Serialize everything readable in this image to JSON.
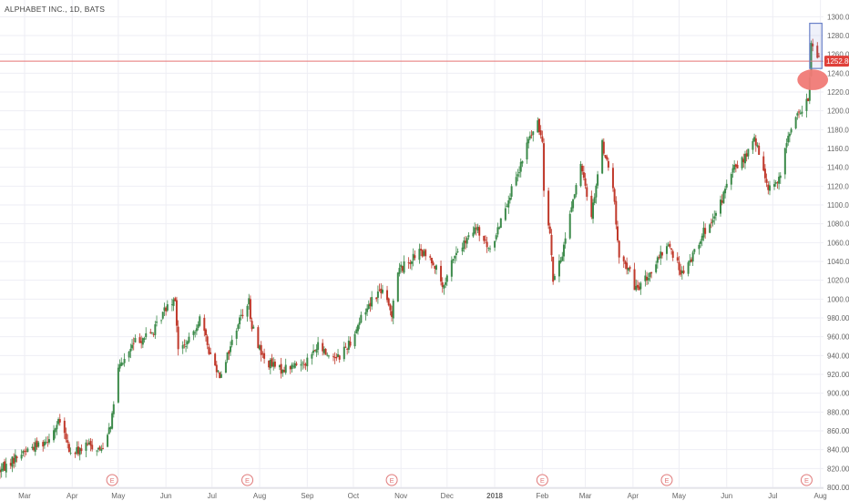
{
  "header": {
    "symbol_label": "ALPHABET INC., 1D, BATS"
  },
  "colors": {
    "up": "#3c8a4a",
    "down": "#c0392b",
    "grid": "#eeeef4",
    "price_line": "#e57373",
    "price_tag_bg": "#e0403a",
    "highlight_box": "#6a80c8",
    "highlight_ellipse": "#f07a76",
    "earnings": "#e07a7a",
    "axis_text": "#666666"
  },
  "chart_data": {
    "type": "candlestick",
    "title": "ALPHABET INC., 1D, BATS",
    "ylim": [
      800,
      1310
    ],
    "y_ticks": [
      800,
      820,
      840,
      860,
      880,
      900,
      920,
      940,
      960,
      980,
      1000,
      1020,
      1040,
      1060,
      1080,
      1100,
      1120,
      1140,
      1160,
      1180,
      1200,
      1220,
      1240,
      1260,
      1280,
      1300
    ],
    "y_tick_labels": [
      "800.00",
      "820.00",
      "840.00",
      "860.00",
      "880.00",
      "900.00",
      "920.00",
      "940.00",
      "960.00",
      "980.00",
      "1000.00",
      "1020.00",
      "1040.00",
      "1060.00",
      "1080.00",
      "1100.00",
      "1120.00",
      "1140.00",
      "1160.00",
      "1180.00",
      "1200.00",
      "1220.00",
      "1240.00",
      "1260.00",
      "1280.00",
      "1300.00"
    ],
    "x_range": [
      "2017-02-13",
      "2018-08-03"
    ],
    "x_ticks": [
      {
        "date": "2017-03-01",
        "label": "Mar"
      },
      {
        "date": "2017-04-01",
        "label": "Apr"
      },
      {
        "date": "2017-05-01",
        "label": "May"
      },
      {
        "date": "2017-06-01",
        "label": "Jun"
      },
      {
        "date": "2017-07-01",
        "label": "Jul"
      },
      {
        "date": "2017-08-01",
        "label": "Aug"
      },
      {
        "date": "2017-09-01",
        "label": "Sep"
      },
      {
        "date": "2017-10-01",
        "label": "Oct"
      },
      {
        "date": "2017-11-01",
        "label": "Nov"
      },
      {
        "date": "2017-12-01",
        "label": "Dec"
      },
      {
        "date": "2018-01-01",
        "label": "2018"
      },
      {
        "date": "2018-02-01",
        "label": "Feb"
      },
      {
        "date": "2018-03-01",
        "label": "Mar"
      },
      {
        "date": "2018-04-01",
        "label": "Apr"
      },
      {
        "date": "2018-05-01",
        "label": "May"
      },
      {
        "date": "2018-06-01",
        "label": "Jun"
      },
      {
        "date": "2018-07-01",
        "label": "Jul"
      },
      {
        "date": "2018-08-01",
        "label": "Aug"
      }
    ],
    "anchors": [
      [
        "2017-02-13",
        818
      ],
      [
        "2017-02-28",
        838
      ],
      [
        "2017-03-15",
        850
      ],
      [
        "2017-03-24",
        870
      ],
      [
        "2017-03-31",
        835
      ],
      [
        "2017-04-12",
        845
      ],
      [
        "2017-04-20",
        840
      ],
      [
        "2017-04-27",
        874
      ],
      [
        "2017-04-28",
        890
      ],
      [
        "2017-05-01",
        925
      ],
      [
        "2017-05-12",
        955
      ],
      [
        "2017-05-24",
        965
      ],
      [
        "2017-06-02",
        995
      ],
      [
        "2017-06-07",
        1002
      ],
      [
        "2017-06-09",
        945
      ],
      [
        "2017-06-16",
        955
      ],
      [
        "2017-06-23",
        980
      ],
      [
        "2017-06-30",
        940
      ],
      [
        "2017-07-06",
        920
      ],
      [
        "2017-07-12",
        945
      ],
      [
        "2017-07-18",
        975
      ],
      [
        "2017-07-25",
        1000
      ],
      [
        "2017-07-26",
        975
      ],
      [
        "2017-08-04",
        935
      ],
      [
        "2017-08-14",
        925
      ],
      [
        "2017-08-25",
        930
      ],
      [
        "2017-09-01",
        935
      ],
      [
        "2017-09-08",
        950
      ],
      [
        "2017-09-15",
        940
      ],
      [
        "2017-09-22",
        940
      ],
      [
        "2017-09-29",
        955
      ],
      [
        "2017-10-06",
        980
      ],
      [
        "2017-10-13",
        1000
      ],
      [
        "2017-10-19",
        1010
      ],
      [
        "2017-10-26",
        985
      ],
      [
        "2017-10-27",
        1000
      ],
      [
        "2017-10-30",
        1030
      ],
      [
        "2017-11-06",
        1040
      ],
      [
        "2017-11-13",
        1050
      ],
      [
        "2017-11-22",
        1040
      ],
      [
        "2017-11-29",
        1010
      ],
      [
        "2017-12-05",
        1045
      ],
      [
        "2017-12-13",
        1060
      ],
      [
        "2017-12-20",
        1075
      ],
      [
        "2017-12-29",
        1050
      ],
      [
        "2018-01-08",
        1100
      ],
      [
        "2018-01-16",
        1130
      ],
      [
        "2018-01-23",
        1170
      ],
      [
        "2018-01-29",
        1185
      ],
      [
        "2018-02-01",
        1170
      ],
      [
        "2018-02-02",
        1120
      ],
      [
        "2018-02-06",
        1070
      ],
      [
        "2018-02-08",
        1020
      ],
      [
        "2018-02-13",
        1040
      ],
      [
        "2018-02-20",
        1100
      ],
      [
        "2018-02-26",
        1140
      ],
      [
        "2018-03-05",
        1090
      ],
      [
        "2018-03-12",
        1165
      ],
      [
        "2018-03-19",
        1120
      ],
      [
        "2018-03-23",
        1040
      ],
      [
        "2018-03-29",
        1035
      ],
      [
        "2018-04-02",
        1010
      ],
      [
        "2018-04-09",
        1020
      ],
      [
        "2018-04-17",
        1040
      ],
      [
        "2018-04-24",
        1060
      ],
      [
        "2018-04-27",
        1045
      ],
      [
        "2018-05-04",
        1025
      ],
      [
        "2018-05-08",
        1040
      ],
      [
        "2018-05-16",
        1070
      ],
      [
        "2018-05-23",
        1080
      ],
      [
        "2018-06-01",
        1120
      ],
      [
        "2018-06-06",
        1140
      ],
      [
        "2018-06-13",
        1150
      ],
      [
        "2018-06-19",
        1170
      ],
      [
        "2018-06-28",
        1120
      ],
      [
        "2018-07-05",
        1125
      ],
      [
        "2018-07-12",
        1180
      ],
      [
        "2018-07-19",
        1200
      ],
      [
        "2018-07-24",
        1210
      ],
      [
        "2018-07-26",
        1270
      ],
      [
        "2018-07-31",
        1252.8
      ]
    ],
    "last_price": {
      "value": 1252.8,
      "label": "1252.80"
    },
    "highlight_box": {
      "x_start": "2018-07-25",
      "x_end": "2018-08-02",
      "y_low": 1245,
      "y_high": 1293
    },
    "highlight_ellipse": {
      "center_date": "2018-07-27",
      "center_price": 1233,
      "width_days": 10,
      "height_price": 22
    },
    "earnings_markers": {
      "label": "E",
      "dates": [
        "2017-04-27",
        "2017-07-24",
        "2017-10-26",
        "2018-02-01",
        "2018-04-23",
        "2018-07-23"
      ]
    }
  }
}
